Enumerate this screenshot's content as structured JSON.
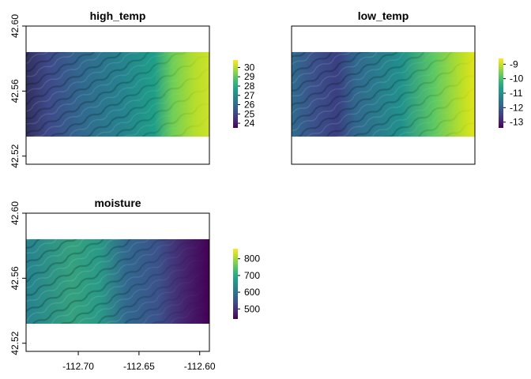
{
  "chart_data": [
    {
      "type": "heatmap",
      "title": "high_temp",
      "xlabel": "",
      "ylabel": "",
      "ylim": [
        42.515,
        42.6
      ],
      "y_ticks": [
        "42.52",
        "42.56",
        "42.60"
      ],
      "x_ticks": [],
      "data_extent_y": [
        42.532,
        42.584
      ],
      "legend_ticks": [
        "24",
        "25",
        "26",
        "27",
        "28",
        "29",
        "30"
      ],
      "legend_range": [
        23.5,
        30.8
      ],
      "gradient": "increasing west to east",
      "colormap": "viridis",
      "legend_placement": "right"
    },
    {
      "type": "heatmap",
      "title": "low_temp",
      "xlabel": "",
      "ylabel": "",
      "ylim": [
        42.515,
        42.6
      ],
      "y_ticks": [],
      "x_ticks": [],
      "data_extent_y": [
        42.532,
        42.584
      ],
      "legend_ticks": [
        "-9",
        "-10",
        "-11",
        "-12",
        "-13"
      ],
      "legend_range": [
        -13.4,
        -8.6
      ],
      "gradient": "increasing west to east",
      "colormap": "viridis",
      "legend_placement": "right"
    },
    {
      "type": "heatmap",
      "title": "moisture",
      "xlabel": "",
      "ylabel": "",
      "ylim": [
        42.515,
        42.6
      ],
      "y_ticks": [
        "42.52",
        "42.56",
        "42.60"
      ],
      "x_ticks": [
        "-112.70",
        "-112.65",
        "-112.60"
      ],
      "xlim": [
        -112.743,
        -112.592
      ],
      "data_extent_y": [
        42.532,
        42.584
      ],
      "legend_ticks": [
        "500",
        "600",
        "700",
        "800"
      ],
      "legend_range": [
        440,
        860
      ],
      "gradient": "decreasing west to east",
      "colormap": "viridis",
      "legend_placement": "right"
    }
  ],
  "colors": {
    "viridis": [
      "#440154",
      "#482878",
      "#3e4989",
      "#31688e",
      "#26828e",
      "#1f9e89",
      "#35b779",
      "#6ece58",
      "#b5de2b",
      "#fde725"
    ]
  }
}
